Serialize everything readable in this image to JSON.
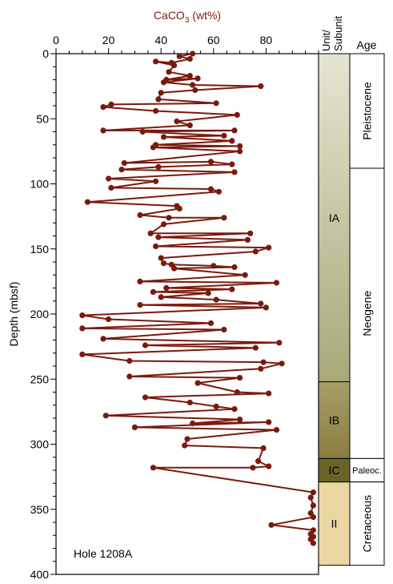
{
  "chart_data": {
    "type": "line",
    "xlabel": "CaCO3 (wt%)",
    "xlabel_main": "CaCO",
    "xlabel_sub": "3",
    "xlabel_tail": " (wt%)",
    "ylabel": "Depth (mbsf)",
    "xlim": [
      0,
      100
    ],
    "ylim": [
      0,
      400
    ],
    "y_inverted": true,
    "x_ticks": [
      0,
      20,
      40,
      60,
      80
    ],
    "y_ticks": [
      0,
      50,
      100,
      150,
      200,
      250,
      300,
      350,
      400
    ],
    "x_tick_labels": [
      "0",
      "20",
      "40",
      "60",
      "80"
    ],
    "y_tick_labels": [
      "0",
      "50",
      "100",
      "150",
      "200",
      "250",
      "300",
      "350",
      "400"
    ],
    "series_color": "#7a1a0e",
    "annotation": "Hole 1208A",
    "series": [
      {
        "points": [
          [
            52,
            0
          ],
          [
            47,
            2
          ],
          [
            51,
            4
          ],
          [
            44,
            7
          ],
          [
            38,
            6
          ],
          [
            45,
            9
          ],
          [
            43,
            14
          ],
          [
            51,
            17
          ],
          [
            42,
            20
          ],
          [
            54,
            19
          ],
          [
            41,
            22
          ],
          [
            52,
            24
          ],
          [
            78,
            25
          ],
          [
            53,
            28
          ],
          [
            40,
            30
          ],
          [
            39,
            35
          ],
          [
            61,
            38
          ],
          [
            21,
            39
          ],
          [
            18,
            41
          ],
          [
            38,
            44
          ],
          [
            69,
            47
          ],
          [
            46,
            52
          ],
          [
            51,
            55
          ],
          [
            18,
            59
          ],
          [
            68,
            59
          ],
          [
            33,
            60
          ],
          [
            64,
            63
          ],
          [
            41,
            64
          ],
          [
            67,
            67
          ],
          [
            38,
            70
          ],
          [
            70,
            71
          ],
          [
            37,
            72
          ],
          [
            70,
            75
          ],
          [
            26,
            84
          ],
          [
            59,
            83
          ],
          [
            67,
            85
          ],
          [
            39,
            87
          ],
          [
            25,
            89
          ],
          [
            68,
            91
          ],
          [
            20,
            96
          ],
          [
            38,
            98
          ],
          [
            21,
            103
          ],
          [
            59,
            104
          ],
          [
            62,
            106
          ],
          [
            12,
            114
          ],
          [
            46,
            117
          ],
          [
            47,
            119
          ],
          [
            32,
            124
          ],
          [
            43,
            126
          ],
          [
            64,
            126
          ],
          [
            41,
            131
          ],
          [
            36,
            138
          ],
          [
            74,
            138
          ],
          [
            39,
            141
          ],
          [
            73,
            143
          ],
          [
            38,
            148
          ],
          [
            81,
            149
          ],
          [
            76,
            152
          ],
          [
            40,
            157
          ],
          [
            41,
            161
          ],
          [
            44,
            162
          ],
          [
            60,
            163
          ],
          [
            68,
            164
          ],
          [
            45,
            165
          ],
          [
            72,
            170
          ],
          [
            32,
            175
          ],
          [
            84,
            176
          ],
          [
            42,
            180
          ],
          [
            67,
            181
          ],
          [
            37,
            183
          ],
          [
            58,
            184
          ],
          [
            40,
            187
          ],
          [
            61,
            189
          ],
          [
            78,
            192
          ],
          [
            32,
            193
          ],
          [
            80,
            195
          ],
          [
            10,
            201
          ],
          [
            20,
            204
          ],
          [
            59,
            207
          ],
          [
            10,
            211
          ],
          [
            64,
            212
          ],
          [
            18,
            219
          ],
          [
            85,
            222
          ],
          [
            34,
            224
          ],
          [
            76,
            226
          ],
          [
            10,
            231
          ],
          [
            28,
            236
          ],
          [
            79,
            237
          ],
          [
            86,
            238
          ],
          [
            78,
            242
          ],
          [
            28,
            248
          ],
          [
            70,
            249
          ],
          [
            54,
            253
          ],
          [
            69,
            260
          ],
          [
            81,
            261
          ],
          [
            34,
            264
          ],
          [
            51,
            268
          ],
          [
            61,
            271
          ],
          [
            68,
            273
          ],
          [
            19,
            278
          ],
          [
            70,
            281
          ],
          [
            52,
            284
          ],
          [
            81,
            283
          ],
          [
            30,
            287
          ],
          [
            84,
            289
          ],
          [
            50,
            296
          ],
          [
            49,
            301
          ],
          [
            79,
            303
          ],
          [
            77,
            313
          ],
          [
            81,
            317
          ],
          [
            75,
            318
          ],
          [
            37,
            318
          ],
          [
            98,
            337
          ],
          [
            97,
            341
          ],
          [
            98,
            347
          ],
          [
            97,
            353
          ],
          [
            98,
            356
          ],
          [
            82,
            362
          ],
          [
            98,
            366
          ],
          [
            97,
            369
          ],
          [
            98,
            371
          ],
          [
            97,
            373
          ],
          [
            98,
            376
          ]
        ]
      }
    ]
  },
  "unit_column": {
    "header_line1": "Unit/",
    "header_line2": "Subunit",
    "units": [
      {
        "label": "IA",
        "top": 0,
        "bottom": 252,
        "color_top": "#e6e5d2",
        "color_bottom": "#a8a979"
      },
      {
        "label": "IB",
        "top": 252,
        "bottom": 311,
        "color_top": "#a79e68",
        "color_bottom": "#8a7d40"
      },
      {
        "label": "IC",
        "top": 311,
        "bottom": 329,
        "color_top": "#6b6428",
        "color_bottom": "#6b6428"
      },
      {
        "label": "II",
        "top": 329,
        "bottom": 393,
        "color_top": "#ead7a2",
        "color_bottom": "#ead7a2"
      }
    ]
  },
  "age_column": {
    "header": "Age",
    "ages": [
      {
        "label": "Pleistocene",
        "top": 0,
        "bottom": 88,
        "rotated": true
      },
      {
        "label": "Neogene",
        "top": 88,
        "bottom": 311,
        "rotated": true
      },
      {
        "label": "Paleoc.",
        "top": 311,
        "bottom": 329,
        "rotated": false
      },
      {
        "label": "Cretaceous",
        "top": 329,
        "bottom": 393,
        "rotated": true
      }
    ]
  }
}
